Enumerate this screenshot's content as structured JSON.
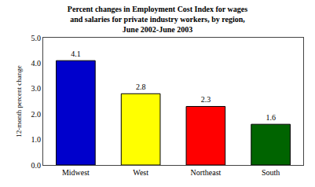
{
  "chart_data": {
    "type": "bar",
    "title": "Percent changes in Employment Cost Index for wages\nand salaries for private industry workers, by region,\nJune 2002-June 2003",
    "categories": [
      "Midwest",
      "West",
      "Northeast",
      "South"
    ],
    "values": [
      4.1,
      2.8,
      2.3,
      1.6
    ],
    "colors": [
      "#0000CC",
      "#FFFF00",
      "#FF0000",
      "#006400"
    ],
    "ylabel": "12-month percent change",
    "ylim": [
      0.0,
      5.0
    ],
    "yticks": [
      {
        "value": 0,
        "label": "0.0"
      },
      {
        "value": 1,
        "label": "1.0"
      },
      {
        "value": 2,
        "label": "2.0"
      },
      {
        "value": 3,
        "label": "3.0"
      },
      {
        "value": 4,
        "label": "4.0"
      },
      {
        "value": 5,
        "label": "5.0"
      }
    ],
    "data_labels": true,
    "grid": false
  }
}
